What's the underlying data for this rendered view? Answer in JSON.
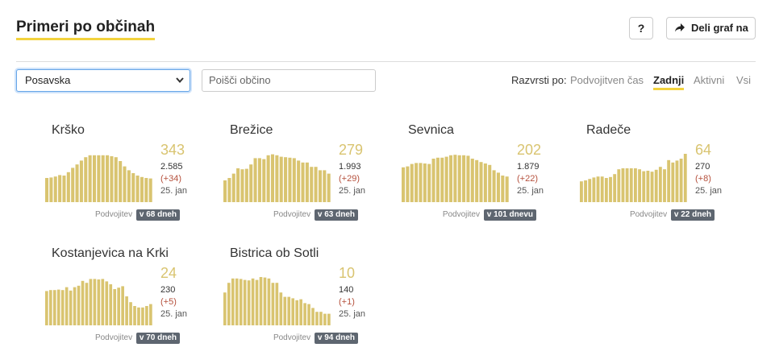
{
  "header": {
    "title": "Primeri po občinah",
    "help_label": "?",
    "share_label": "Deli graf na"
  },
  "filters": {
    "region": "Posavska",
    "search_placeholder": "Poišči občino",
    "sort_label": "Razvrsti po:",
    "sort_options": [
      "Podvojitven čas",
      "Zadnji",
      "Aktivni",
      "Vsi"
    ],
    "sort_active": "Zadnji"
  },
  "colors": {
    "bar": "#d9c470",
    "accent": "#f2d23d",
    "badge": "#5e6670",
    "delta": "#b5503c"
  },
  "cards": [
    {
      "name": "Krško",
      "active": "343",
      "total": "2.585",
      "delta": "(+34)",
      "date": "25. jan",
      "footer_label": "Podvojitev",
      "doubling": "v 68 dneh",
      "bars": [
        0.5,
        0.51,
        0.53,
        0.56,
        0.55,
        0.62,
        0.71,
        0.78,
        0.86,
        0.93,
        0.97,
        0.97,
        0.97,
        0.97,
        0.97,
        0.95,
        0.93,
        0.85,
        0.74,
        0.66,
        0.6,
        0.55,
        0.52,
        0.5,
        0.49
      ]
    },
    {
      "name": "Brežice",
      "active": "279",
      "total": "1.993",
      "delta": "(+29)",
      "date": "25. jan",
      "footer_label": "Podvojitev",
      "doubling": "v 63 dneh",
      "bars": [
        0.45,
        0.5,
        0.59,
        0.7,
        0.68,
        0.69,
        0.78,
        0.91,
        0.91,
        0.89,
        0.97,
        0.99,
        0.97,
        0.94,
        0.93,
        0.92,
        0.91,
        0.86,
        0.82,
        0.82,
        0.73,
        0.73,
        0.66,
        0.66,
        0.59
      ]
    },
    {
      "name": "Sevnica",
      "active": "202",
      "total": "1.879",
      "delta": "(+22)",
      "date": "25. jan",
      "footer_label": "Podvojitev",
      "doubling": "v 101 dnevu",
      "bars": [
        0.72,
        0.74,
        0.79,
        0.81,
        0.81,
        0.8,
        0.79,
        0.9,
        0.92,
        0.92,
        0.94,
        0.97,
        0.98,
        0.97,
        0.97,
        0.96,
        0.9,
        0.87,
        0.83,
        0.8,
        0.77,
        0.66,
        0.61,
        0.55,
        0.53
      ]
    },
    {
      "name": "Radeče",
      "active": "64",
      "total": "270",
      "delta": "(+8)",
      "date": "25. jan",
      "footer_label": "Podvojitev",
      "doubling": "v 22 dneh",
      "bars": [
        0.43,
        0.45,
        0.48,
        0.51,
        0.53,
        0.53,
        0.5,
        0.52,
        0.58,
        0.68,
        0.7,
        0.7,
        0.7,
        0.7,
        0.68,
        0.64,
        0.65,
        0.63,
        0.67,
        0.73,
        0.68,
        0.87,
        0.82,
        0.86,
        0.9,
        1.0
      ]
    },
    {
      "name": "Kostanjevica na Krki",
      "active": "24",
      "total": "230",
      "delta": "(+5)",
      "date": "25. jan",
      "footer_label": "Podvojitev",
      "doubling": "v 70 dneh",
      "bars": [
        0.71,
        0.73,
        0.73,
        0.74,
        0.73,
        0.79,
        0.72,
        0.79,
        0.82,
        0.92,
        0.88,
        0.96,
        0.96,
        0.95,
        0.96,
        0.91,
        0.85,
        0.75,
        0.78,
        0.81,
        0.6,
        0.48,
        0.4,
        0.37,
        0.37,
        0.4,
        0.44
      ]
    },
    {
      "name": "Bistrica ob Sotli",
      "active": "10",
      "total": "140",
      "delta": "(+1)",
      "date": "25. jan",
      "footer_label": "Podvojitev",
      "doubling": "v 94 dneh",
      "bars": [
        0.68,
        0.88,
        0.97,
        0.97,
        0.96,
        0.94,
        0.93,
        0.97,
        0.94,
        1.0,
        0.99,
        0.97,
        0.88,
        0.88,
        0.68,
        0.59,
        0.59,
        0.56,
        0.52,
        0.54,
        0.46,
        0.44,
        0.36,
        0.28,
        0.28,
        0.24,
        0.24
      ]
    }
  ]
}
